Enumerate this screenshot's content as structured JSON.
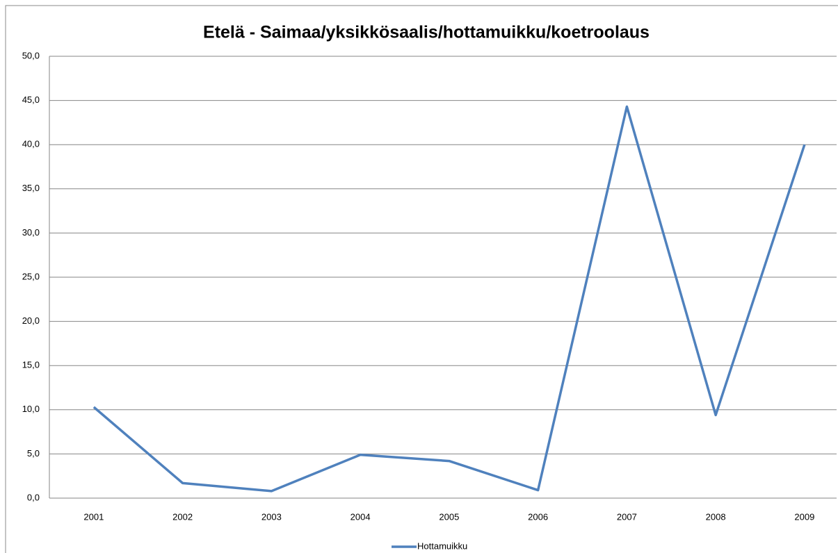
{
  "chart_data": {
    "type": "line",
    "title": "Etelä - Saimaa/yksikkösaalis/hottamuikku/koetroolaus",
    "categories": [
      "2001",
      "2002",
      "2003",
      "2004",
      "2005",
      "2006",
      "2007",
      "2008",
      "2009"
    ],
    "series": [
      {
        "name": "Hottamuikku",
        "color": "#4f81bd",
        "values": [
          10.3,
          1.7,
          0.8,
          4.9,
          4.2,
          0.9,
          44.3,
          9.4,
          40.0
        ]
      }
    ],
    "ylim": [
      0,
      50
    ],
    "yticks": [
      {
        "value": 0,
        "label": "0,0"
      },
      {
        "value": 5,
        "label": "5,0"
      },
      {
        "value": 10,
        "label": "10,0"
      },
      {
        "value": 15,
        "label": "15,0"
      },
      {
        "value": 20,
        "label": "20,0"
      },
      {
        "value": 25,
        "label": "25,0"
      },
      {
        "value": 30,
        "label": "30,0"
      },
      {
        "value": 35,
        "label": "35,0"
      },
      {
        "value": 40,
        "label": "40,0"
      },
      {
        "value": 45,
        "label": "45,0"
      },
      {
        "value": 50,
        "label": "50,0"
      }
    ],
    "grid": true,
    "legend": "bottom"
  }
}
